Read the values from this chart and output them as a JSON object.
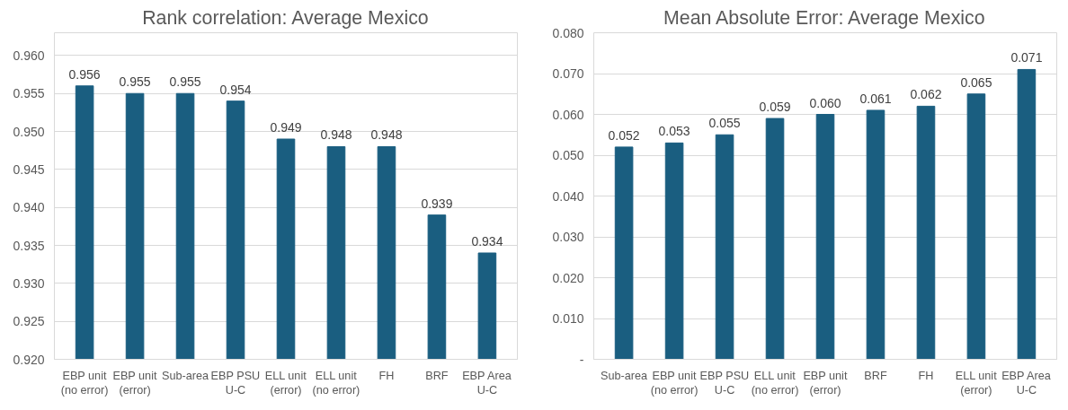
{
  "chart_data": [
    {
      "type": "bar",
      "title": "Rank correlation: Average Mexico",
      "categories": [
        "EBP unit\n(no error)",
        "EBP unit\n(error)",
        "Sub-area",
        "EBP PSU\nU-C",
        "ELL unit\n(error)",
        "ELL unit\n(no error)",
        "FH",
        "BRF",
        "EBP Area\nU-C"
      ],
      "values": [
        0.956,
        0.955,
        0.955,
        0.954,
        0.949,
        0.948,
        0.948,
        0.939,
        0.934
      ],
      "color": "#1a5e80",
      "value_labels": [
        "0.956",
        "0.955",
        "0.955",
        "0.954",
        "0.949",
        "0.948",
        "0.948",
        "0.939",
        "0.934"
      ],
      "ylim": [
        0.92,
        0.963
      ],
      "yticks": [
        {
          "value": 0.92,
          "label": "0.920"
        },
        {
          "value": 0.925,
          "label": "0.925"
        },
        {
          "value": 0.93,
          "label": "0.930"
        },
        {
          "value": 0.935,
          "label": "0.935"
        },
        {
          "value": 0.94,
          "label": "0.940"
        },
        {
          "value": 0.945,
          "label": "0.945"
        },
        {
          "value": 0.95,
          "label": "0.950"
        },
        {
          "value": 0.955,
          "label": "0.955"
        },
        {
          "value": 0.96,
          "label": "0.960"
        }
      ],
      "grid": "y"
    },
    {
      "type": "bar",
      "title": "Mean Absolute Error: Average Mexico",
      "categories": [
        "Sub-area",
        "EBP unit\n(no error)",
        "EBP PSU\nU-C",
        "ELL unit\n(no error)",
        "EBP unit\n(error)",
        "BRF",
        "FH",
        "ELL unit\n(error)",
        "EBP Area\nU-C"
      ],
      "values": [
        0.052,
        0.053,
        0.055,
        0.059,
        0.06,
        0.061,
        0.062,
        0.065,
        0.071
      ],
      "color": "#1a5e80",
      "value_labels": [
        "0.052",
        "0.053",
        "0.055",
        "0.059",
        "0.060",
        "0.061",
        "0.062",
        "0.065",
        "0.071"
      ],
      "ylim": [
        0,
        0.08
      ],
      "yticks": [
        {
          "value": 0,
          "label": "-"
        },
        {
          "value": 0.01,
          "label": "0.010"
        },
        {
          "value": 0.02,
          "label": "0.020"
        },
        {
          "value": 0.03,
          "label": "0.030"
        },
        {
          "value": 0.04,
          "label": "0.040"
        },
        {
          "value": 0.05,
          "label": "0.050"
        },
        {
          "value": 0.06,
          "label": "0.060"
        },
        {
          "value": 0.07,
          "label": "0.070"
        },
        {
          "value": 0.08,
          "label": "0.080"
        }
      ],
      "grid": "y"
    }
  ]
}
